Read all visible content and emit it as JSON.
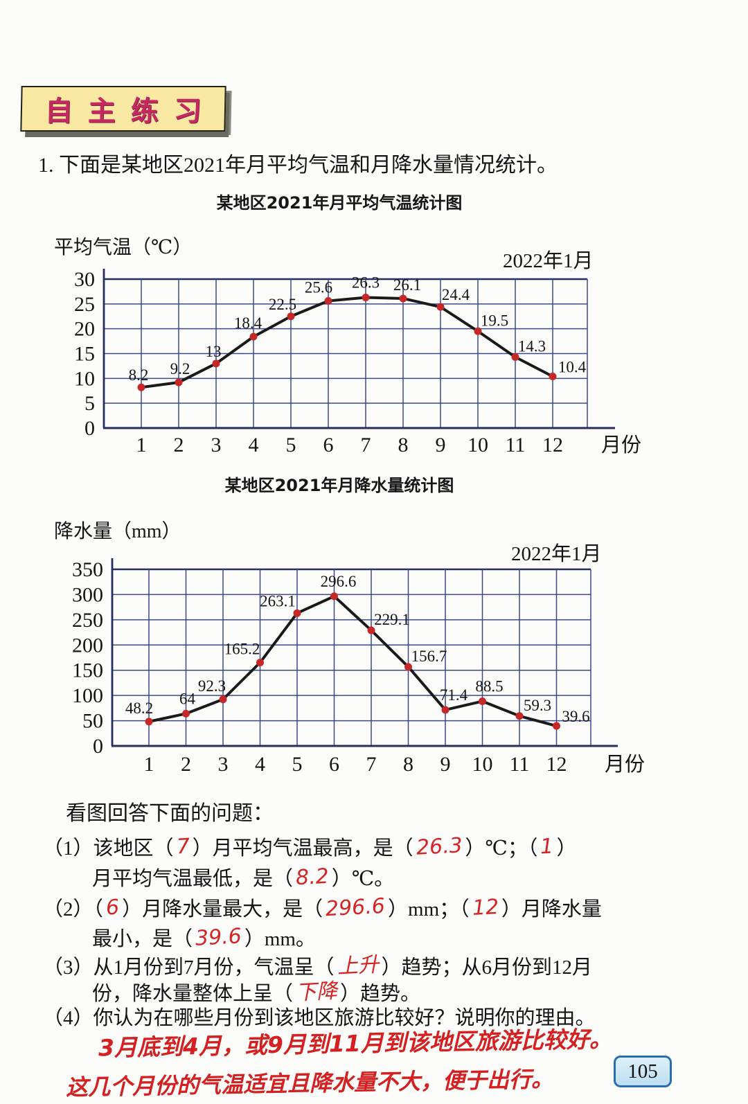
{
  "banner": {
    "title": "自主练习"
  },
  "problem": {
    "text": "1. 下面是某地区2021年月平均气温和月降水量情况统计。"
  },
  "chart_data": [
    {
      "type": "line",
      "title": "某地区2021年月平均气温统计图",
      "ylabel": "平均气温（℃）",
      "xlabel": "月份",
      "corner_label": "2022年1月",
      "categories": [
        "1",
        "2",
        "3",
        "4",
        "5",
        "6",
        "7",
        "8",
        "9",
        "10",
        "11",
        "12"
      ],
      "values": [
        8.2,
        9.2,
        13,
        18.4,
        22.5,
        25.6,
        26.3,
        26.1,
        24.4,
        19.5,
        14.3,
        10.4
      ],
      "point_labels": [
        "8.2",
        "9.2",
        "13",
        "18.4",
        "22.5",
        "25.6",
        "26.3",
        "26.1",
        "24.4",
        "19.5",
        "14.3",
        "10.4"
      ],
      "ylim": [
        0,
        30
      ],
      "ytick": 5,
      "grid": true,
      "legend_position": "none",
      "line_color": "#1a1a1a",
      "point_color": "#c62828",
      "grid_color": "#3b478c",
      "axis_color": "#252e5e"
    },
    {
      "type": "line",
      "title": "某地区2021年月降水量统计图",
      "ylabel": "降水量（mm）",
      "xlabel": "月份",
      "corner_label": "2022年1月",
      "categories": [
        "1",
        "2",
        "3",
        "4",
        "5",
        "6",
        "7",
        "8",
        "9",
        "10",
        "11",
        "12"
      ],
      "values": [
        48.2,
        64,
        92.3,
        165.2,
        263.1,
        296.6,
        229.1,
        156.7,
        71.4,
        88.5,
        59.3,
        39.6
      ],
      "point_labels": [
        "48.2",
        "64",
        "92.3",
        "165.2",
        "263.1",
        "296.6",
        "229.1",
        "156.7",
        "71.4",
        "88.5",
        "59.3",
        "39.6"
      ],
      "ylim": [
        0,
        350
      ],
      "ytick": 50,
      "grid": true,
      "legend_position": "none",
      "line_color": "#1a1a1a",
      "point_color": "#c62828",
      "grid_color": "#3b478c",
      "axis_color": "#252e5e"
    }
  ],
  "questions": {
    "intro": "看图回答下面的问题：",
    "q1": {
      "l1": [
        "（1）该地区（",
        "）月平均气温最高，是（",
        "）℃；（",
        "）"
      ],
      "l1_answers": [
        "7",
        "26.3",
        "1"
      ],
      "l2": [
        "月平均气温最低，是（",
        "）℃。"
      ],
      "l2_answer": "8.2"
    },
    "q2": {
      "l1": [
        "（2）（",
        "）月降水量最大，是（",
        "）mm；（",
        "）月降水量"
      ],
      "l1_answers": [
        "6",
        "296.6",
        "12"
      ],
      "l2": [
        "最小，是（",
        "）mm。"
      ],
      "l2_answer": "39.6"
    },
    "q3": {
      "l1": [
        "（3）从1月份到7月份，气温呈（",
        "）趋势；从6月份到12月"
      ],
      "l1_answer": "上升",
      "l2": [
        "份，降水量整体上呈（",
        "）趋势。"
      ],
      "l2_answer": "下降"
    },
    "q4": {
      "l1": "（4）你认为在哪些月份到该地区旅游比较好？说明你的理由。",
      "handwritten": [
        "3月底到4月，或9月到11月到该地区旅游比较好。",
        "这几个月份的气温适宜且降水量不大，便于出行。"
      ]
    }
  },
  "page": {
    "number": "105"
  }
}
